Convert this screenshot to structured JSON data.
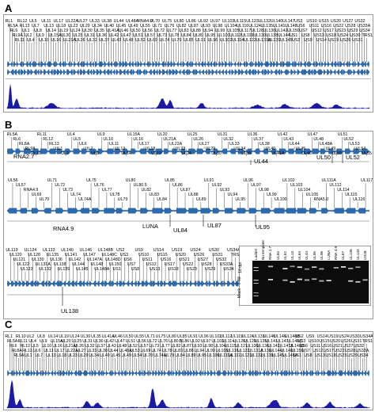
{
  "panels": {
    "a": "A",
    "b": "B",
    "c": "C"
  },
  "panel_a": {
    "features": [
      "RL1",
      "RL5A",
      "RL6",
      "RL9A",
      "RL11",
      "RL12",
      "RL13",
      "UL1",
      "UL2",
      "UL4",
      "UL5",
      "UL7",
      "UL8",
      "UL9",
      "UL10",
      "UL11",
      "UL13",
      "UL14",
      "UL15A",
      "UL16",
      "UL17",
      "UL18",
      "UL19",
      "UL20",
      "UL21A",
      "UL22A",
      "UL23",
      "UL24",
      "UL25",
      "UL26",
      "UL27",
      "UL29",
      "UL30",
      "UL31",
      "UL32",
      "UL33",
      "UL34",
      "UL35",
      "UL36",
      "UL37",
      "UL38",
      "UL40",
      "UL41A",
      "UL42",
      "UL43",
      "UL44",
      "UL45",
      "UL46",
      "UL47",
      "UL48",
      "UL48A",
      "UL49",
      "UL50",
      "UL51",
      "UL52",
      "RNA4.9",
      "UL55",
      "UL56",
      "UL57",
      "UL69",
      "UL70",
      "UL71",
      "UL72",
      "UL73",
      "UL74",
      "UL75",
      "UL76",
      "UL77",
      "UL78",
      "UL79",
      "UL80",
      "UL82",
      "UL83",
      "UL84",
      "UL85",
      "UL86",
      "UL87",
      "UL88",
      "UL89",
      "UL91",
      "UL92",
      "UL93",
      "UL94",
      "UL95",
      "UL96",
      "UL97",
      "UL98",
      "UL99",
      "UL100",
      "UL102",
      "UL103",
      "UL104",
      "UL105",
      "UL112",
      "UL114",
      "UL115",
      "UL116",
      "UL117",
      "UL119",
      "UL122",
      "UL123",
      "UL124",
      "UL128",
      "UL130",
      "UL131A",
      "UL132",
      "UL135",
      "UL136",
      "UL138",
      "UL139",
      "UL140",
      "UL141",
      "UL142",
      "UL144",
      "UL145",
      "UL147",
      "UL148",
      "UL150",
      "US1",
      "US2",
      "US3",
      "US6",
      "US7",
      "US8",
      "US9",
      "US10",
      "US11",
      "US12",
      "US13",
      "US14",
      "US15",
      "US16",
      "US17",
      "US18",
      "US19",
      "US20",
      "US22",
      "US23",
      "US24",
      "US26",
      "US27",
      "US28",
      "US29",
      "US30",
      "US31",
      "US32",
      "US33A",
      "US34",
      "TRS1"
    ]
  },
  "panel_b": {
    "row1": {
      "gene_labels": [
        "RL5A",
        "RL6",
        "RL8A",
        "RL9A",
        "RL10",
        "RL11",
        "RL12",
        "RL13",
        "UL1",
        "UL2",
        "UL4",
        "UL5",
        "UL6",
        "UL7",
        "UL8",
        "UL9",
        "UL10",
        "UL11",
        "UL13",
        "UL14",
        "UL15A",
        "UL16",
        "UL17",
        "UL18",
        "UL19",
        "UL20",
        "UL21A",
        "UL22A",
        "UL23",
        "UL24",
        "UL25",
        "UL26",
        "UL27",
        "UL29",
        "UL30",
        "UL31",
        "UL32",
        "UL33",
        "UL34",
        "UL35",
        "UL36",
        "UL37",
        "UL38",
        "UL40",
        "UL41A",
        "UL42",
        "UL43",
        "UL44",
        "UL45",
        "UL46",
        "UL47",
        "UL48",
        "UL48A",
        "UL49",
        "UL50",
        "UL51",
        "UL52",
        "UL53",
        "UL54",
        "UL55"
      ],
      "track_labels": [
        "RNA2.7",
        "UL44",
        "UL50",
        "UL52"
      ]
    },
    "row2": {
      "gene_labels": [
        "UL56",
        "UL57",
        "RNA4.9",
        "UL69",
        "UL70",
        "UL71",
        "UL72",
        "UL73",
        "UL74",
        "UL74A",
        "UL75",
        "UL76",
        "UL77",
        "UL78",
        "UL79",
        "UL80",
        "UL80.5",
        "UL82",
        "UL83",
        "UL84",
        "UL85",
        "UL86",
        "UL87",
        "UL88",
        "UL89",
        "UL91",
        "UL92",
        "UL93",
        "UL94",
        "UL95",
        "UL96",
        "UL97",
        "UL98",
        "UL99",
        "UL100",
        "UL102",
        "UL103",
        "UL104",
        "UL105",
        "RNA5.0",
        "UL111A",
        "UL112",
        "UL114",
        "UL115",
        "UL116",
        "UL117"
      ],
      "track_labels": [
        "RNA4.9",
        "LUNA",
        "UL84",
        "UL87",
        "UL95"
      ]
    },
    "row3": {
      "gene_labels": [
        "UL119",
        "UL120",
        "UL121",
        "UL122",
        "UL123",
        "UL124",
        "UL128",
        "UL130",
        "UL131A",
        "UL132",
        "UL133",
        "UL135",
        "UL136",
        "UL138",
        "UL139",
        "UL140",
        "UL141",
        "UL142",
        "UL144",
        "UL145",
        "UL146",
        "UL147",
        "UL147A",
        "UL148",
        "UL148A",
        "UL148B",
        "UL148C",
        "UL148D",
        "UL150",
        "US1",
        "US2",
        "US3",
        "US6",
        "US7",
        "US8",
        "US9",
        "US10",
        "US11",
        "US12",
        "US13",
        "US14",
        "US15",
        "US16",
        "US17",
        "US18",
        "US19",
        "US20",
        "US21",
        "US22",
        "US23",
        "US24",
        "US26",
        "US27",
        "US28",
        "US29",
        "US30",
        "US31",
        "US32",
        "US33A",
        "US34",
        "US34A",
        "TRS1"
      ],
      "track_labels": [
        "UL138"
      ]
    },
    "gel": {
      "lanes": [
        "Ladder",
        "No template",
        "RNA 2.7",
        "UL50",
        "UL52",
        "UL13",
        "UL84",
        "UL44",
        "UL95",
        "UL96",
        "LUNA",
        "RNA 4.9",
        "UL87",
        "UL138",
        "UL133",
        "US28"
      ],
      "rows": [
        "18 dpi",
        "5 dpi",
        "Mock"
      ]
    }
  },
  "panel_c": {
    "features": [
      "RL1",
      "RL5A",
      "RL6",
      "RL8A",
      "RL9A",
      "RL10",
      "RL11",
      "RL12",
      "RL13",
      "UL1",
      "UL2",
      "UL4",
      "UL5",
      "UL6",
      "UL7",
      "UL8",
      "UL9",
      "UL10",
      "UL11",
      "UL13",
      "UL14",
      "UL15A",
      "UL16",
      "UL17",
      "UL18",
      "UL19",
      "UL20",
      "UL21A",
      "UL22A",
      "UL23",
      "UL24",
      "UL25",
      "UL26",
      "UL27",
      "UL29",
      "UL30",
      "UL31",
      "UL32",
      "UL33",
      "UL34",
      "UL35",
      "UL36",
      "UL37",
      "UL38",
      "UL40",
      "UL41A",
      "UL42",
      "UL43",
      "UL44",
      "UL45",
      "UL46",
      "UL47",
      "UL48",
      "UL48A",
      "UL49",
      "UL50",
      "UL51",
      "UL52",
      "UL53",
      "UL54",
      "UL55",
      "UL56",
      "UL57",
      "UL69",
      "UL70",
      "UL71",
      "UL72",
      "UL73",
      "UL74",
      "UL74A",
      "UL75",
      "UL76",
      "UL77",
      "UL78",
      "UL79",
      "UL80",
      "UL80.5",
      "UL82",
      "UL83",
      "UL84",
      "UL85",
      "UL86",
      "UL87",
      "UL88",
      "UL89",
      "UL91",
      "UL92",
      "UL93",
      "UL94",
      "UL95",
      "UL96",
      "UL97",
      "UL98",
      "UL99",
      "UL100",
      "UL102",
      "UL103",
      "UL104",
      "UL105",
      "UL111A",
      "UL112",
      "UL114",
      "UL115",
      "UL116",
      "UL117",
      "UL119",
      "UL120",
      "UL121",
      "UL122",
      "UL123",
      "UL124",
      "UL128",
      "UL130",
      "UL131A",
      "UL132",
      "UL133",
      "UL135",
      "UL136",
      "UL138",
      "UL139",
      "UL140",
      "UL141",
      "UL142",
      "UL144",
      "UL145",
      "UL146",
      "UL147",
      "UL147A",
      "UL148",
      "UL148A",
      "UL148B",
      "UL148C",
      "UL148D",
      "UL150",
      "US1",
      "US2",
      "US3",
      "US6",
      "US7",
      "US8",
      "US9",
      "US10",
      "US11",
      "US12",
      "US13",
      "US14",
      "US15",
      "US16",
      "US17",
      "US18",
      "US19",
      "US20",
      "US21",
      "US22",
      "US23",
      "US24",
      "US26",
      "US27",
      "US28",
      "US29",
      "US30",
      "US31",
      "US32",
      "US33A",
      "US34",
      "US34A",
      "TRS1"
    ]
  },
  "colors": {
    "gene_arrow": "#2b6cb0",
    "coverage": "#1a1aa6",
    "genome_line": "#5a7fb0"
  }
}
